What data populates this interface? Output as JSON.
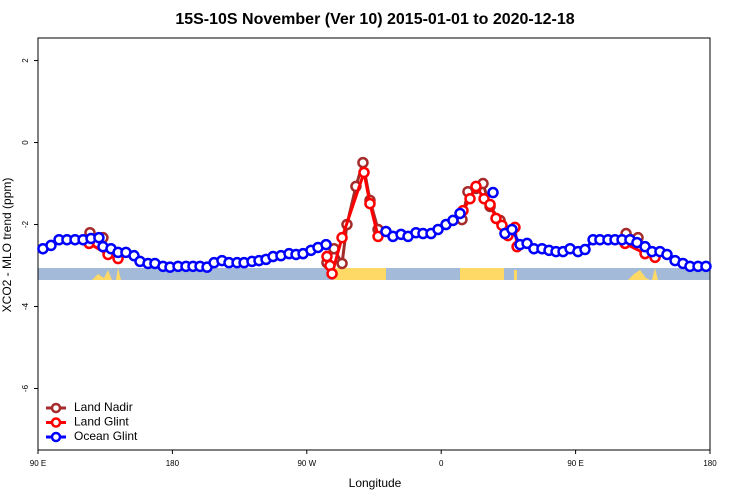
{
  "chart_data": {
    "type": "line",
    "title": "15S-10S November (Ver 10)   2015-01-01 to 2020-12-18",
    "x_label": "Longitude",
    "y_label": "XCO2 - MLO trend (ppm)",
    "xlim": [
      90,
      540
    ],
    "xticks": [
      {
        "value": 90,
        "label": "90 E"
      },
      180,
      {
        "value": 270,
        "label": "90 W"
      },
      {
        "value": 360,
        "label": "0"
      },
      {
        "value": 450,
        "label": "90 E"
      },
      180
    ],
    "ylim": [
      -7.5,
      2.55
    ],
    "yticks": [
      2,
      0,
      -2,
      -4,
      -6
    ],
    "legend": "bottom-left",
    "series": [
      {
        "name": "Land Nadir",
        "color": "#a52a2a",
        "x": [
          124.8,
          133.5,
          null,
          283.5,
          288.2,
          293.6,
          296.9,
          302.9,
          307.6,
          312.3,
          317.7,
          null,
          373.9,
          377.9,
          383.3,
          388.0,
          392.7,
          399.4,
          null,
          483.8,
          491.8
        ],
        "values": [
          -2.2,
          -2.32,
          null,
          -2.93,
          -2.59,
          -2.95,
          -2.0,
          -1.07,
          -0.49,
          -1.41,
          -2.12,
          null,
          -1.88,
          -1.2,
          -1.12,
          -1.0,
          -1.56,
          -1.9,
          null,
          -2.22,
          -2.32
        ]
      },
      {
        "name": "Land Glint",
        "color": "#ff0000",
        "x": [
          124.2,
          136.9,
          143.6,
          null,
          283.5,
          285.5,
          286.9,
          293.6,
          308.3,
          312.3,
          317.7,
          null,
          374.6,
          379.3,
          383.3,
          388.7,
          392.7,
          396.7,
          400.7,
          404.7,
          409.4,
          410.8,
          null,
          483.1,
          496.5,
          503.2
        ],
        "values": [
          -2.46,
          -2.73,
          -2.83,
          null,
          -2.78,
          -3.0,
          -3.2,
          -2.32,
          -0.73,
          -1.49,
          -2.29,
          null,
          -1.66,
          -1.37,
          -1.07,
          -1.37,
          -1.51,
          -1.85,
          -2.02,
          -2.27,
          -2.07,
          -2.54,
          null,
          -2.46,
          -2.71,
          -2.8
        ]
      },
      {
        "name": "Ocean Glint",
        "color": "#0000ff",
        "x": [
          93.3,
          98.7,
          104.1,
          109.4,
          114.8,
          120.2,
          125.5,
          130.8,
          133.5,
          138.9,
          143.6,
          148.9,
          154.3,
          158.3,
          163.7,
          168.3,
          173.7,
          178.4,
          183.8,
          189.1,
          193.8,
          198.5,
          203.2,
          207.9,
          213.2,
          217.9,
          223.3,
          228.0,
          233.3,
          238.0,
          242.7,
          247.4,
          252.7,
          258.1,
          262.8,
          267.5,
          272.8,
          277.5,
          282.9,
          null,
          323.0,
          327.7,
          333.1,
          337.8,
          343.1,
          347.8,
          353.2,
          357.9,
          363.2,
          367.9,
          372.6,
          null,
          394.7,
          null,
          402.7,
          407.4,
          412.8,
          417.5,
          422.1,
          427.5,
          432.2,
          436.9,
          441.6,
          446.3,
          451.6,
          456.3,
          461.7,
          466.3,
          471.7,
          476.4,
          481.1,
          486.4,
          491.1,
          496.5,
          501.2,
          506.5,
          511.2,
          516.6,
          521.9,
          526.6,
          532.0,
          537.3
        ],
        "values": [
          -2.59,
          -2.51,
          -2.37,
          -2.37,
          -2.37,
          -2.37,
          -2.34,
          -2.32,
          -2.54,
          -2.59,
          -2.68,
          -2.68,
          -2.76,
          -2.9,
          -2.95,
          -2.95,
          -3.02,
          -3.04,
          -3.02,
          -3.02,
          -3.02,
          -3.02,
          -3.04,
          -2.93,
          -2.88,
          -2.93,
          -2.93,
          -2.93,
          -2.9,
          -2.88,
          -2.85,
          -2.78,
          -2.76,
          -2.71,
          -2.73,
          -2.71,
          -2.63,
          -2.56,
          -2.49,
          null,
          -2.17,
          -2.29,
          -2.24,
          -2.29,
          -2.2,
          -2.22,
          -2.22,
          -2.12,
          -2.0,
          -1.9,
          -1.73,
          null,
          -1.22,
          null,
          -2.22,
          -2.12,
          -2.49,
          -2.46,
          -2.59,
          -2.59,
          -2.63,
          -2.66,
          -2.66,
          -2.59,
          -2.66,
          -2.61,
          -2.37,
          -2.37,
          -2.37,
          -2.37,
          -2.37,
          -2.37,
          -2.44,
          -2.54,
          -2.66,
          -2.66,
          -2.73,
          -2.88,
          -2.95,
          -3.02,
          -3.02,
          -3.02
        ]
      }
    ]
  }
}
